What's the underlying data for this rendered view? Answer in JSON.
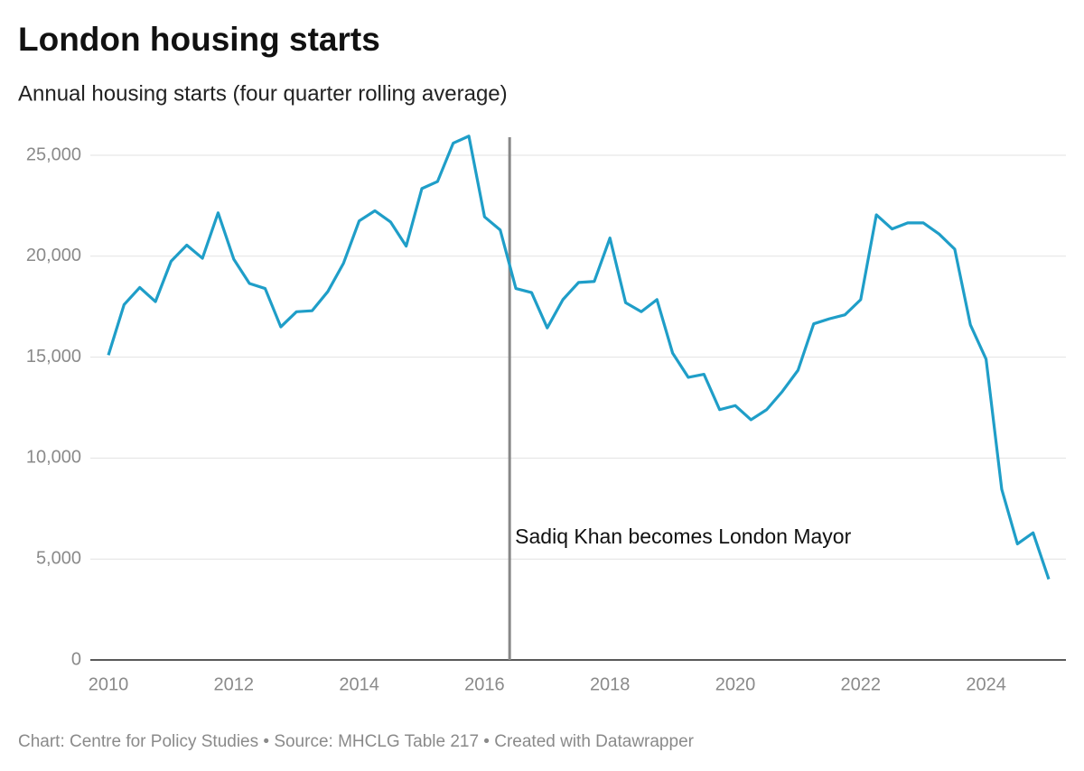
{
  "chart_data": {
    "type": "line",
    "title": "London housing starts",
    "subtitle": "Annual housing starts (four quarter rolling average)",
    "source": "Chart: Centre for Policy Studies • Source: MHCLG Table 217 • Created with Datawrapper",
    "x": [
      2010,
      2010.25,
      2010.5,
      2010.75,
      2011,
      2011.25,
      2011.5,
      2011.75,
      2012,
      2012.25,
      2012.5,
      2012.75,
      2013,
      2013.25,
      2013.5,
      2013.75,
      2014,
      2014.25,
      2014.5,
      2014.75,
      2015,
      2015.25,
      2015.5,
      2015.75,
      2016,
      2016.25,
      2016.5,
      2016.75,
      2017,
      2017.25,
      2017.5,
      2017.75,
      2018,
      2018.25,
      2018.5,
      2018.75,
      2019,
      2019.25,
      2019.5,
      2019.75,
      2020,
      2020.25,
      2020.5,
      2020.75,
      2021,
      2021.25,
      2021.5,
      2021.75,
      2022,
      2022.25,
      2022.5,
      2022.75,
      2023,
      2023.25,
      2023.5,
      2023.75,
      2024,
      2024.25,
      2024.5,
      2024.75,
      2025
    ],
    "series": [
      {
        "name": "Housing starts",
        "color": "#1f9ec8",
        "values": [
          15100,
          17600,
          18450,
          17750,
          19750,
          20550,
          19900,
          22150,
          19850,
          18650,
          18400,
          16500,
          17250,
          17300,
          18250,
          19650,
          21750,
          22250,
          21700,
          20500,
          23350,
          23700,
          25600,
          25950,
          21950,
          21300,
          18400,
          18200,
          16450,
          17850,
          18700,
          18750,
          20900,
          17700,
          17250,
          17850,
          15200,
          14000,
          14150,
          12400,
          12600,
          11900,
          12400,
          13300,
          14350,
          16650,
          16900,
          17100,
          17850,
          22050,
          21350,
          21650,
          21650,
          21100,
          20350,
          16600,
          14900,
          8450,
          5750,
          6300,
          4000
        ]
      }
    ],
    "xlim": [
      2010,
      2025
    ],
    "xticks": [
      2010,
      2012,
      2014,
      2016,
      2018,
      2020,
      2022,
      2024
    ],
    "ylim": [
      0,
      25000
    ],
    "yticks": [
      0,
      {
        "value": 5000,
        "label": "5,000"
      },
      {
        "value": 10000,
        "label": "10,000"
      },
      {
        "value": 15000,
        "label": "15,000"
      },
      {
        "value": 20000,
        "label": "20,000"
      },
      {
        "value": 25000,
        "label": "25,000"
      }
    ],
    "grid": true,
    "annotations": [
      {
        "x": 2016.4,
        "label": "Sadiq Khan becomes London Mayor"
      }
    ]
  }
}
